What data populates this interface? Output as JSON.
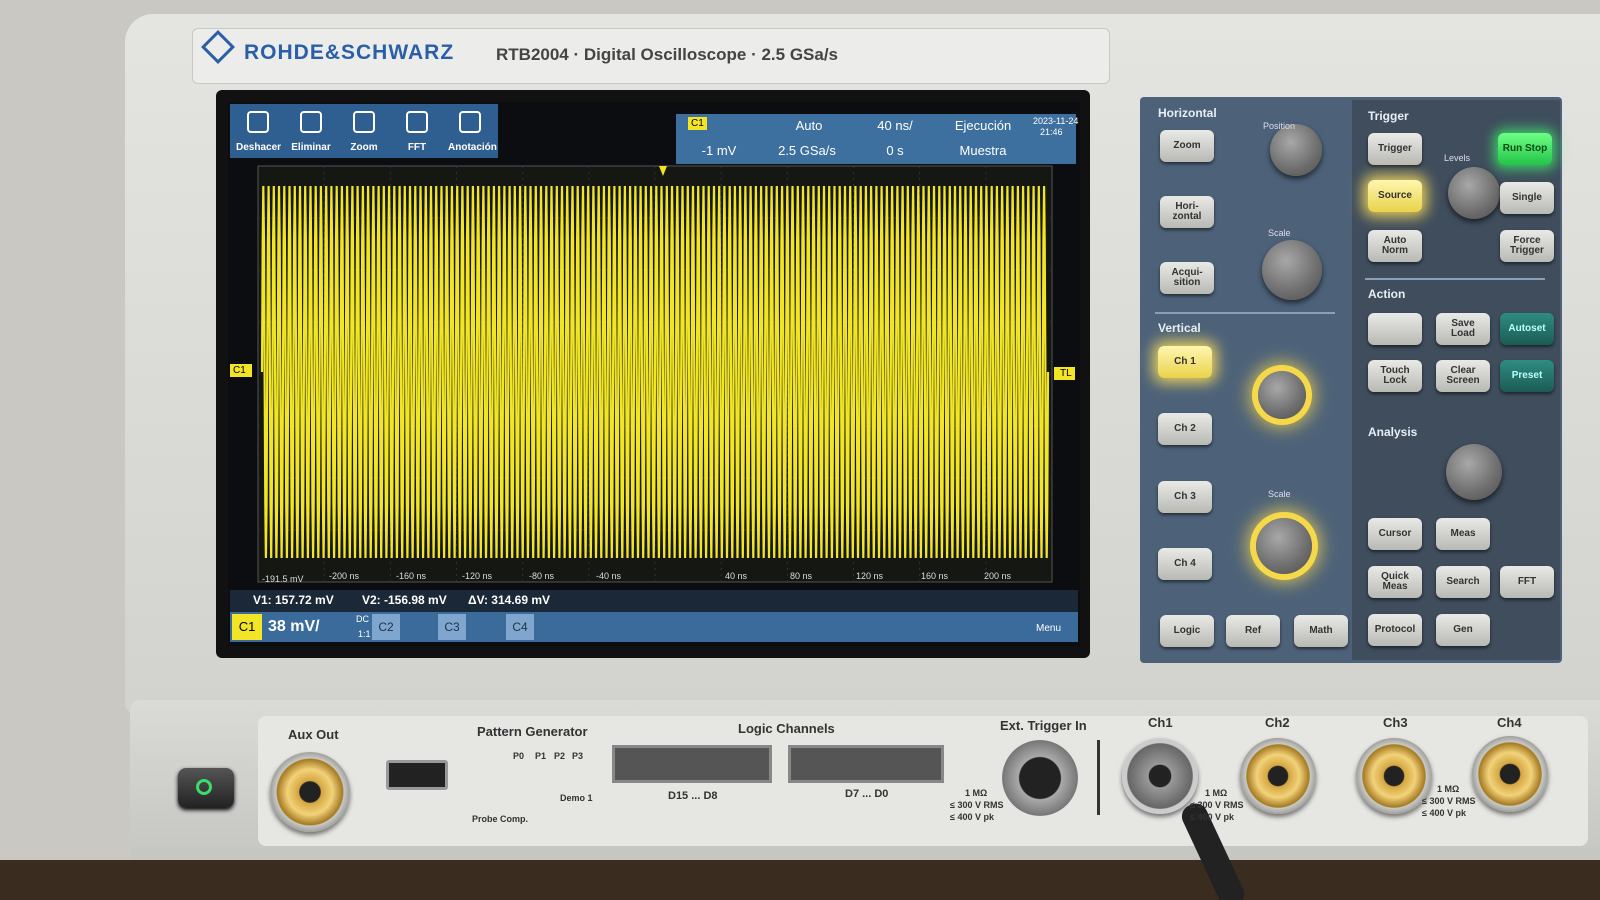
{
  "header": {
    "brand": "ROHDE&SCHWARZ",
    "model": "RTB2004 · Digital Oscilloscope · 2.5 GSa/s"
  },
  "toolbar": [
    "Deshacer",
    "Eliminar",
    "Zoom",
    "FFT",
    "Anotación"
  ],
  "status": {
    "channel": "C1",
    "mode": "Auto",
    "timebase": "40 ns/",
    "run_state": "Ejecución",
    "trigger_level": "-1 mV",
    "sample_rate": "2.5 GSa/s",
    "position": "0 s",
    "acquisition": "Muestra",
    "date": "2023-11-24",
    "time": "21:46"
  },
  "markers": {
    "channel": "C1",
    "trigger": "TL",
    "level": "-191.5 mV"
  },
  "time_axis": [
    "-200 ns",
    "-160 ns",
    "-120 ns",
    "-80 ns",
    "-40 ns",
    "40 ns",
    "80 ns",
    "120 ns",
    "160 ns",
    "200 ns"
  ],
  "measurements": [
    "V1: 157.72 mV",
    "V2: -156.98 mV",
    "ΔV: 314.69 mV"
  ],
  "channel_bar": {
    "c1": "C1",
    "scale": "38 mV/",
    "coupling": "DC",
    "probe": "1:1",
    "c2": "C2",
    "c3": "C3",
    "c4": "C4",
    "menu": "Menu"
  },
  "panel": {
    "horizontal": {
      "title": "Horizontal",
      "buttons": [
        "Zoom",
        "Hori-zontal",
        "Acqui-sition"
      ],
      "knobs": [
        "Position",
        "Scale"
      ]
    },
    "vertical": {
      "title": "Vertical",
      "buttons": [
        "Ch 1",
        "Ch 2",
        "Ch 3",
        "Ch 4",
        "Logic",
        "Ref",
        "Math"
      ],
      "knob": "Scale"
    },
    "trigger": {
      "title": "Trigger",
      "buttons": [
        "Trigger",
        "Run Stop",
        "Source",
        "Single",
        "Auto Norm",
        "Force Trigger"
      ],
      "knob": "Levels"
    },
    "action": {
      "title": "Action",
      "buttons": [
        "Save Load",
        "Autoset",
        "Touch Lock",
        "Clear Screen",
        "Preset"
      ]
    },
    "analysis": {
      "title": "Analysis",
      "buttons": [
        "Cursor",
        "Meas",
        "Quick Meas",
        "Search",
        "FFT",
        "Protocol",
        "Gen"
      ]
    }
  },
  "front": {
    "aux_out": "Aux Out",
    "pattern_generator": "Pattern Generator",
    "pins": [
      "P0",
      "P1",
      "P2",
      "P3"
    ],
    "demo": "Demo 1",
    "probe_comp": "Probe Comp.",
    "logic_channels": "Logic Channels",
    "logic_ports": [
      "D15 ... D8",
      "D7 ... D0"
    ],
    "ext_trigger": "Ext. Trigger In",
    "ratings": [
      "1 MΩ",
      "≤ 300 V RMS",
      "≤ 400 V pk"
    ],
    "inputs": [
      "Ch1",
      "Ch2",
      "Ch3",
      "Ch4"
    ]
  }
}
